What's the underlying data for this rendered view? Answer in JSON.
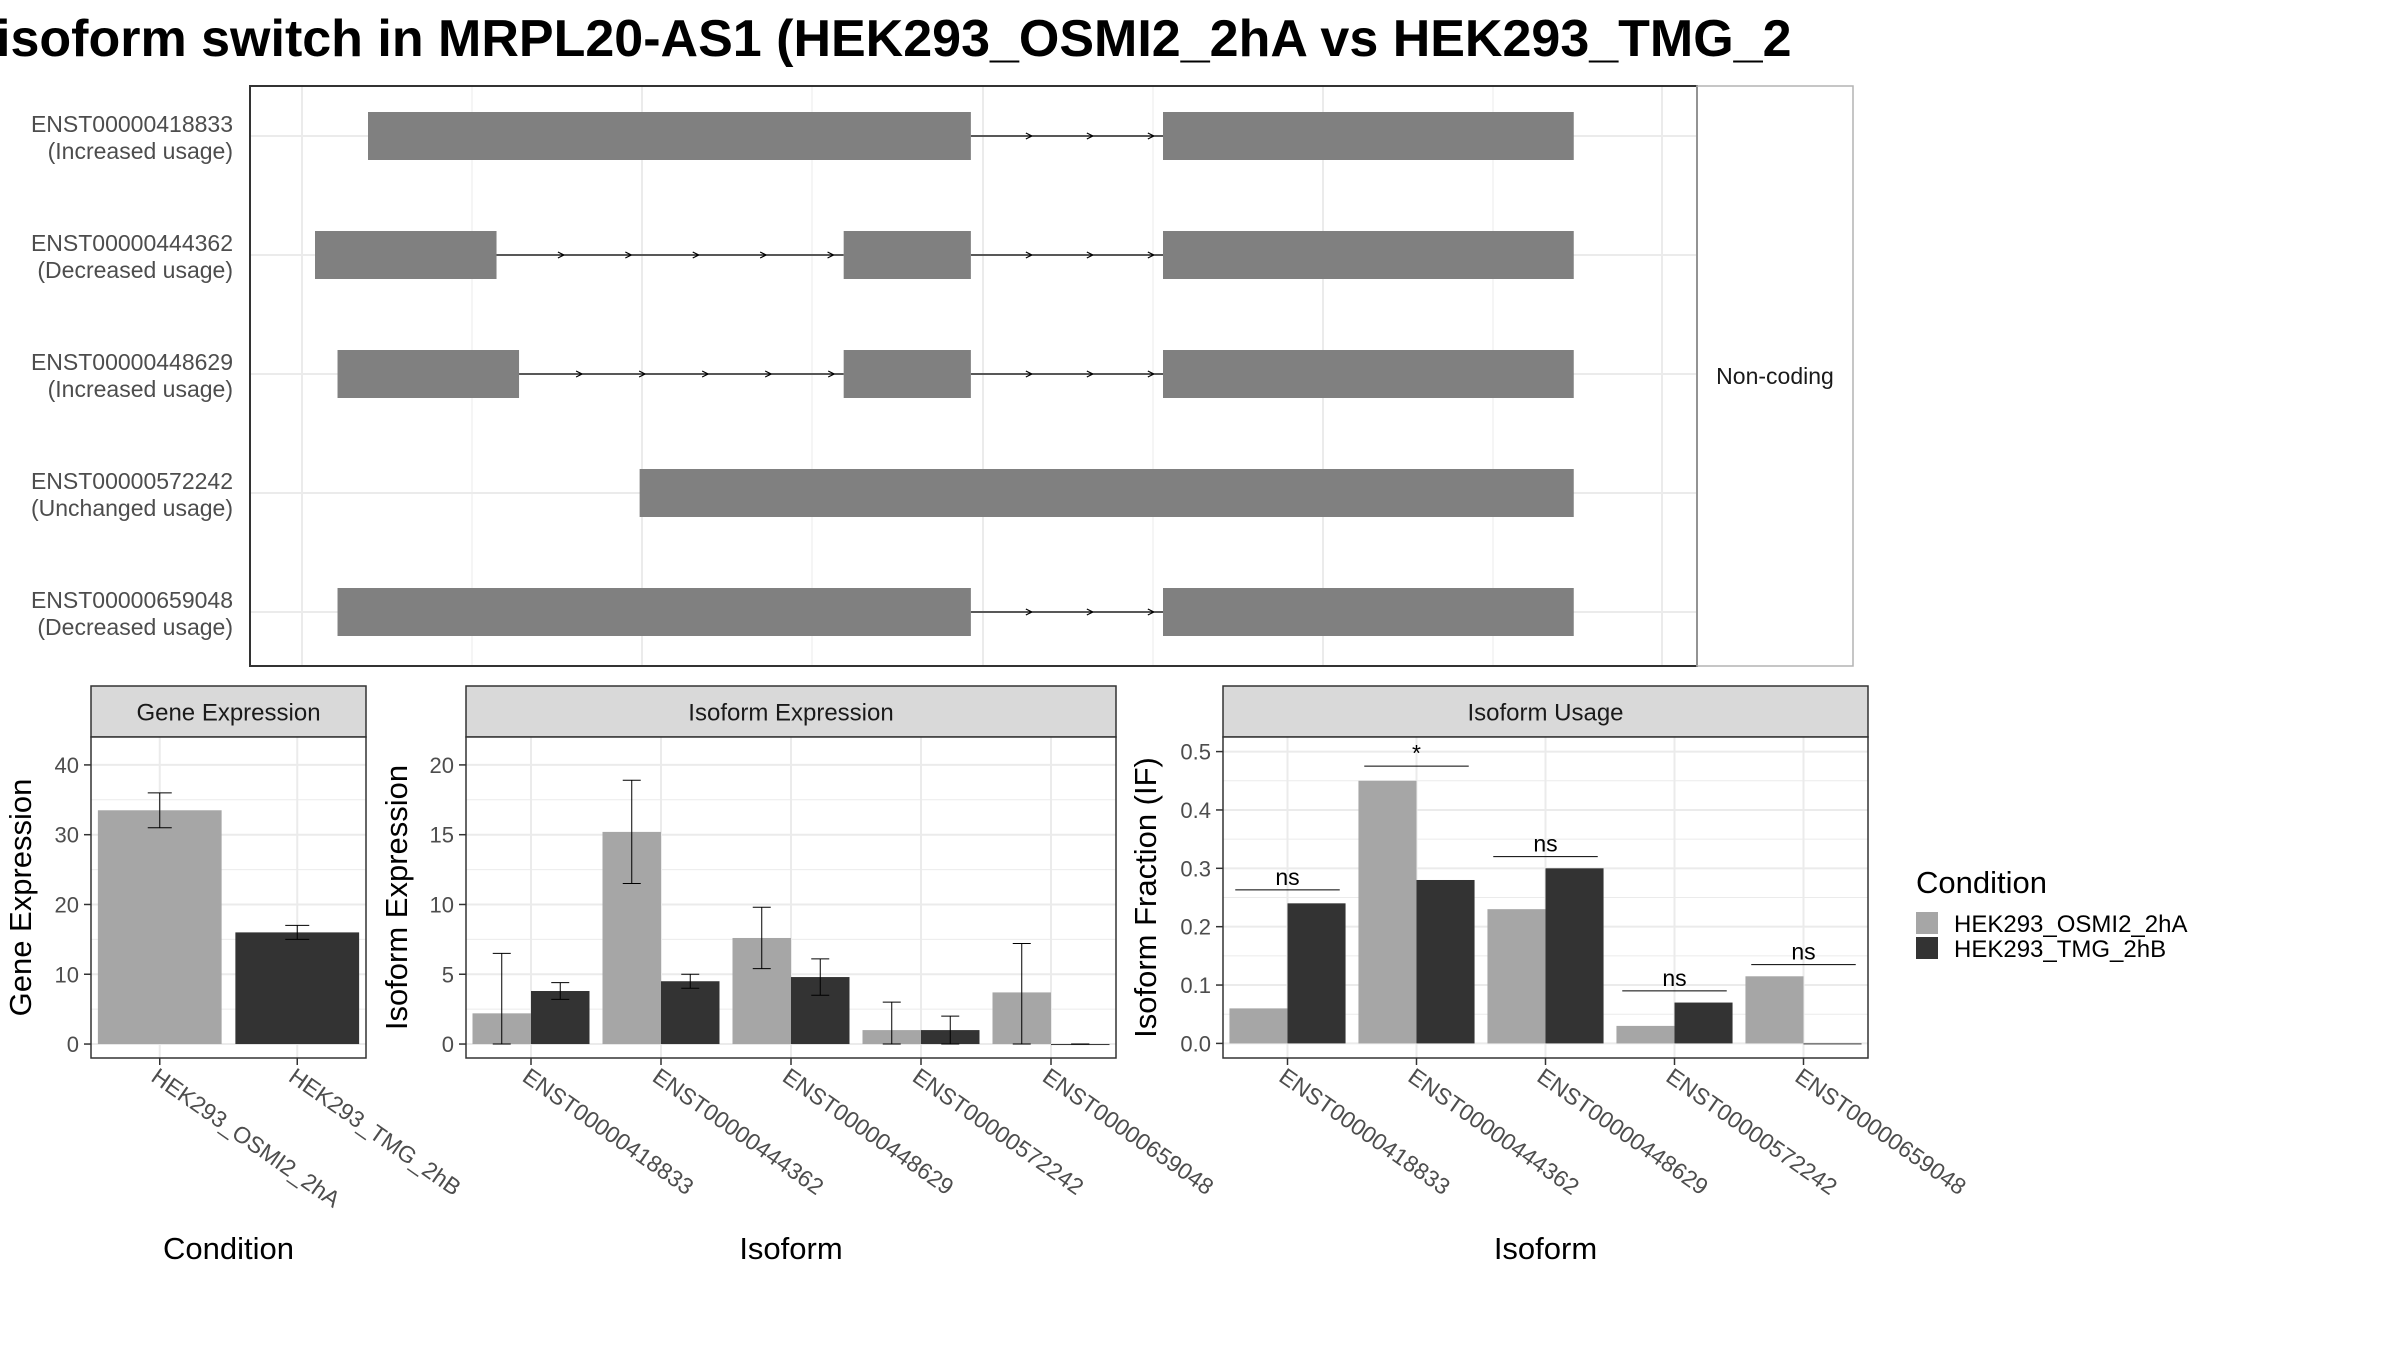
{
  "title": "isoform switch in MRPL20-AS1 (HEK293_OSMI2_2hA vs HEK293_TMG_2",
  "colors": {
    "cond_a": "#A6A6A6",
    "cond_b": "#333333",
    "exon": "#808080",
    "intron": "#000000",
    "grid": "#EBEBEB",
    "frame": "#333333"
  },
  "chart_data": [
    {
      "type": "gantt",
      "name": "isoform-structure",
      "strip_label": "Non-coding",
      "isoforms": [
        {
          "id": "ENST00000418833",
          "status": "(Increased usage)",
          "exons": [
            [
              0.04,
              0.495
            ],
            [
              0.64,
              0.95
            ]
          ]
        },
        {
          "id": "ENST00000444362",
          "status": "(Decreased usage)",
          "exons": [
            [
              0.0,
              0.137
            ],
            [
              0.399,
              0.495
            ],
            [
              0.64,
              0.95
            ]
          ]
        },
        {
          "id": "ENST00000448629",
          "status": "(Increased usage)",
          "exons": [
            [
              0.017,
              0.154
            ],
            [
              0.399,
              0.495
            ],
            [
              0.64,
              0.95
            ]
          ]
        },
        {
          "id": "ENST00000572242",
          "status": "(Unchanged usage)",
          "exons": [
            [
              0.245,
              0.95
            ]
          ]
        },
        {
          "id": "ENST00000659048",
          "status": "(Decreased usage)",
          "exons": [
            [
              0.017,
              0.495
            ],
            [
              0.64,
              0.95
            ]
          ]
        }
      ]
    },
    {
      "type": "bar",
      "name": "gene-expression",
      "strip_title": "Gene Expression",
      "xlabel": "Condition",
      "ylabel": "Gene Expression",
      "ylim": [
        -2,
        44
      ],
      "yticks": [
        0,
        10,
        20,
        30,
        40
      ],
      "categories": [
        "HEK293_OSMI2_2hA",
        "HEK293_TMG_2hB"
      ],
      "values": [
        33.5,
        16.0
      ],
      "errors": [
        [
          31.0,
          36.0
        ],
        [
          15.0,
          17.0
        ]
      ]
    },
    {
      "type": "bar",
      "name": "isoform-expression",
      "strip_title": "Isoform Expression",
      "xlabel": "Isoform",
      "ylabel": "Isoform Expression",
      "ylim": [
        -1,
        22
      ],
      "yticks": [
        0,
        5,
        10,
        15,
        20
      ],
      "categories": [
        "ENST00000418833",
        "ENST00000444362",
        "ENST00000448629",
        "ENST00000572242",
        "ENST00000659048"
      ],
      "series": [
        {
          "name": "HEK293_OSMI2_2hA",
          "values": [
            2.2,
            15.2,
            7.6,
            1.0,
            3.7
          ],
          "errors": [
            [
              0.0,
              6.5
            ],
            [
              11.5,
              18.9
            ],
            [
              5.4,
              9.8
            ],
            [
              0.0,
              3.0
            ],
            [
              0.0,
              7.2
            ]
          ]
        },
        {
          "name": "HEK293_TMG_2hB",
          "values": [
            3.8,
            4.5,
            4.8,
            1.0,
            0.0
          ],
          "errors": [
            [
              3.2,
              4.4
            ],
            [
              4.0,
              5.0
            ],
            [
              3.5,
              6.1
            ],
            [
              0.0,
              2.0
            ],
            [
              0.0,
              0.0
            ]
          ]
        }
      ]
    },
    {
      "type": "bar",
      "name": "isoform-usage",
      "strip_title": "Isoform Usage",
      "xlabel": "Isoform",
      "ylabel": "Isoform Fraction (IF)",
      "ylim": [
        -0.025,
        0.525
      ],
      "yticks": [
        "0.0",
        "0.1",
        "0.2",
        "0.3",
        "0.4",
        "0.5"
      ],
      "categories": [
        "ENST00000418833",
        "ENST00000444362",
        "ENST00000448629",
        "ENST00000572242",
        "ENST00000659048"
      ],
      "series": [
        {
          "name": "HEK293_OSMI2_2hA",
          "values": [
            0.06,
            0.45,
            0.23,
            0.03,
            0.115
          ]
        },
        {
          "name": "HEK293_TMG_2hB",
          "values": [
            0.24,
            0.28,
            0.3,
            0.07,
            0.0
          ]
        }
      ],
      "significance": [
        {
          "label": "ns",
          "y": 0.263
        },
        {
          "label": "*",
          "y": 0.475
        },
        {
          "label": "ns",
          "y": 0.32
        },
        {
          "label": "ns",
          "y": 0.09
        },
        {
          "label": "ns",
          "y": 0.135
        }
      ]
    }
  ],
  "legend": {
    "title": "Condition",
    "items": [
      "HEK293_OSMI2_2hA",
      "HEK293_TMG_2hB"
    ]
  }
}
